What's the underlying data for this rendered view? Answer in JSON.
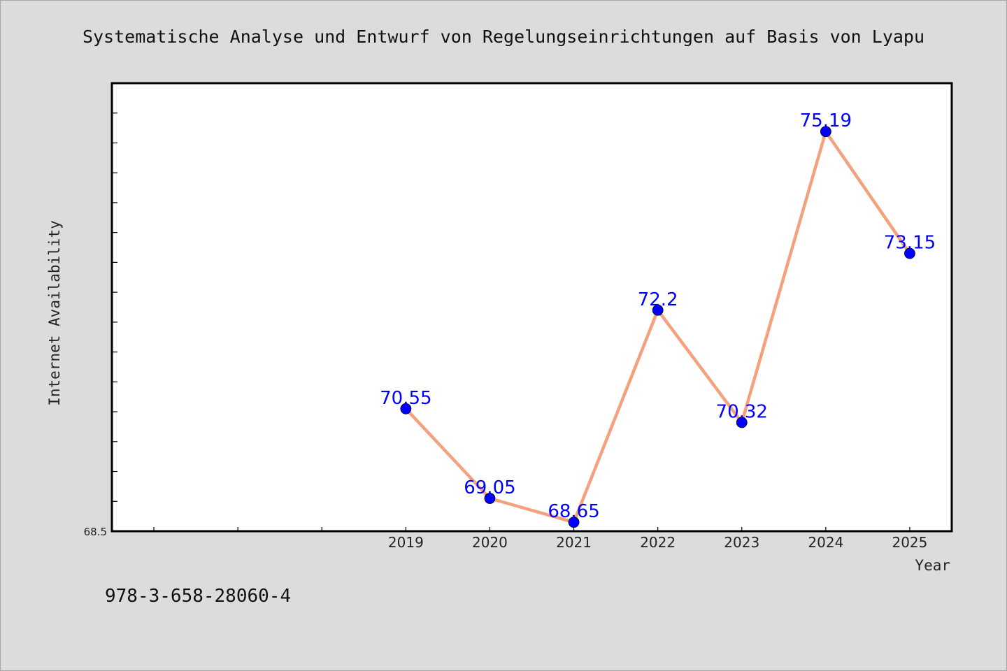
{
  "chart_data": {
    "type": "line",
    "title": "Systematische Analyse und Entwurf von Regelungseinrichtungen auf Basis von Lyapu",
    "xlabel": "Year",
    "ylabel": "Internet Availability",
    "x": [
      "2019",
      "2020",
      "2021",
      "2022",
      "2023",
      "2024",
      "2025"
    ],
    "series": [
      {
        "values": [
          70.55,
          69.05,
          68.65,
          72.2,
          70.32,
          75.19,
          73.15
        ],
        "labels": [
          "70.55",
          "69.05",
          "68.65",
          "72.2",
          "70.32",
          "75.19",
          "73.15"
        ],
        "line_color": "#f4a27e",
        "marker_color": "#0000ff"
      }
    ],
    "xlim": [
      2015.5,
      2025.5
    ],
    "ylim": [
      68.5,
      76.0
    ],
    "ytick_labels": [
      "68.5"
    ],
    "grid": false,
    "legend": "none"
  },
  "footer": {
    "isbn": "978-3-658-28060-4"
  }
}
